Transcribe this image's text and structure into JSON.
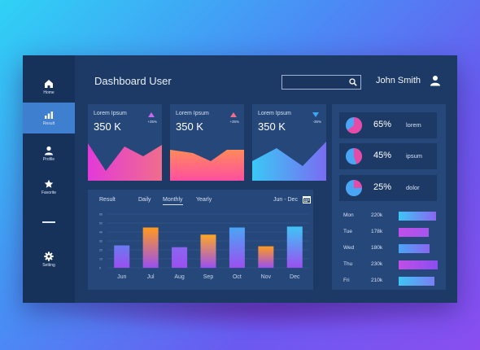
{
  "header": {
    "title": "Dashboard User",
    "user_name": "John Smith",
    "search": {
      "value": "",
      "placeholder": ""
    }
  },
  "sidebar": {
    "items": [
      {
        "label": "Home",
        "icon": "home-icon",
        "active": false
      },
      {
        "label": "Result",
        "icon": "bar-chart-icon",
        "active": true
      },
      {
        "label": "Profile",
        "icon": "user-icon",
        "active": false
      },
      {
        "label": "Favorite",
        "icon": "star-icon",
        "active": false
      },
      {
        "label": "Setting",
        "icon": "gear-icon",
        "active": false
      }
    ]
  },
  "stat_cards": [
    {
      "label": "Lorem Ipsum",
      "value": "350 K",
      "change": "+35%",
      "trend": "up",
      "indicator_color": "#c36be8",
      "gradient": [
        "#e23ad8",
        "#f06d8d"
      ]
    },
    {
      "label": "Lorem Ipsum",
      "value": "350 K",
      "change": "+35%",
      "trend": "up",
      "indicator_color": "#f06d8d",
      "gradient": [
        "#ff4fa0",
        "#ff8a5a"
      ]
    },
    {
      "label": "Lorem Ipsum",
      "value": "350 K",
      "change": "-35%",
      "trend": "down",
      "indicator_color": "#3ba6f2",
      "gradient": [
        "#3ac8f5",
        "#7a6cf2"
      ]
    }
  ],
  "chart_panel": {
    "tabs": [
      "Result",
      "Daily",
      "Monthly",
      "Yearly"
    ],
    "active_tab": "Monthly",
    "date_range": "Jun - Dec"
  },
  "chart_data": {
    "type": "bar",
    "categories": [
      "Jun",
      "Jul",
      "Aug",
      "Sep",
      "Oct",
      "Nov",
      "Dec"
    ],
    "values": [
      25,
      45,
      23,
      37,
      45,
      24,
      46
    ],
    "colors": [
      "#6a7bf0",
      "#ff9a1f",
      "#8a66f0",
      "#ffa726",
      "#4aa6f5",
      "#ff9a1f",
      "#3ec5f5"
    ],
    "ylim": [
      0,
      60
    ],
    "y_ticks": [
      "0",
      "10",
      "20",
      "30",
      "40",
      "50",
      "60"
    ],
    "grid": true
  },
  "pie_stats": [
    {
      "percent": "65%",
      "value": 65,
      "label": "lorem"
    },
    {
      "percent": "45%",
      "value": 45,
      "label": "ipsum"
    },
    {
      "percent": "25%",
      "value": 25,
      "label": "dolor"
    }
  ],
  "daily": [
    {
      "day": "Mon",
      "value": "220k",
      "amount": 220,
      "colors": [
        "#3ec5f5",
        "#8a66f0"
      ]
    },
    {
      "day": "Tue",
      "value": "178k",
      "amount": 178,
      "colors": [
        "#c24ee8",
        "#a356ef"
      ]
    },
    {
      "day": "Wed",
      "value": "180k",
      "amount": 180,
      "colors": [
        "#4aa6f5",
        "#8a66f0"
      ]
    },
    {
      "day": "Thu",
      "value": "230k",
      "amount": 230,
      "colors": [
        "#c24ee8",
        "#8a4ef0"
      ]
    },
    {
      "day": "Fri",
      "value": "210k",
      "amount": 210,
      "colors": [
        "#3ec5f5",
        "#7a7ef2"
      ]
    }
  ]
}
